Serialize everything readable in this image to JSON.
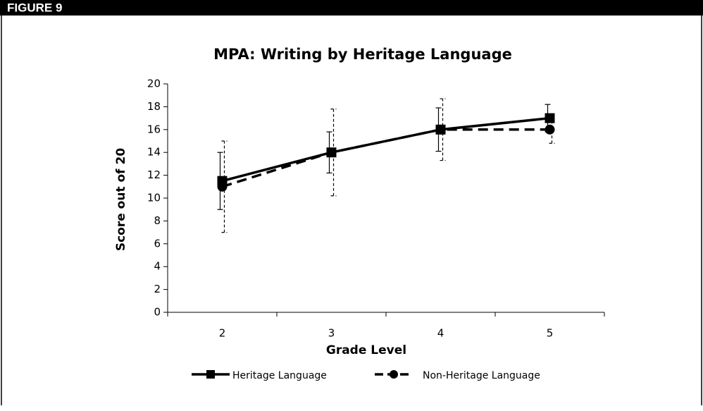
{
  "figure_label": "FIGURE 9",
  "chart_data": {
    "type": "line",
    "title": "MPA: Writing by Heritage Language",
    "x_label": "Grade Level",
    "y_label": "Score out of 20",
    "categories": [
      "2",
      "3",
      "4",
      "5"
    ],
    "series": [
      {
        "name": "Heritage Language",
        "color": "#000000",
        "dash": "solid",
        "marker": "square",
        "values": [
          11.5,
          14,
          16,
          17
        ],
        "errors": [
          2.5,
          1.8,
          1.9,
          1.2
        ]
      },
      {
        "name": "Non-Heritage Language",
        "color": "#000000",
        "dash": "dashed",
        "marker": "circle",
        "values": [
          11,
          14,
          16,
          16
        ],
        "errors": [
          4,
          3.8,
          2.7,
          1.2
        ]
      }
    ],
    "ylim": [
      0,
      20
    ],
    "yticks": [
      0,
      2,
      4,
      6,
      8,
      10,
      12,
      14,
      16,
      18,
      20
    ],
    "grid": false,
    "legend": "bottom"
  }
}
